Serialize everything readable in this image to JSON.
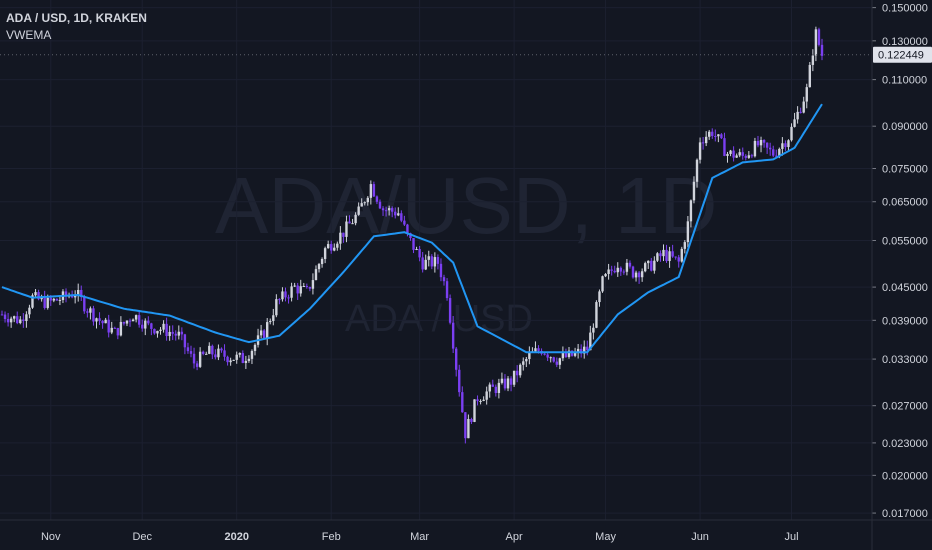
{
  "header": {
    "symbol_title": "ADA / USD, 1D, KRAKEN",
    "indicator": "VWEMA"
  },
  "watermark": {
    "main": "ADA/USD, 1D",
    "sub": "ADA / USD"
  },
  "last_price": "0.122449",
  "colors": {
    "background": "#131722",
    "grid": "#1c2030",
    "axis_text": "#d1d4dc",
    "up_candle": "#d1d4dc",
    "down_candle": "#7b3ff2",
    "vwema_line": "#2196f3",
    "price_tag_bg": "#e0e3eb",
    "price_tag_text": "#131722"
  },
  "chart_data": {
    "type": "candlestick",
    "title": "ADA / USD, 1D, KRAKEN",
    "y_scale": "log",
    "ylim": [
      0.0165,
      0.155
    ],
    "price_axis_labels": [
      "0.150000",
      "0.130000",
      "0.110000",
      "0.090000",
      "0.075000",
      "0.065000",
      "0.055000",
      "0.045000",
      "0.039000",
      "0.033000",
      "0.027000",
      "0.023000",
      "0.020000",
      "0.017000"
    ],
    "time_axis_labels": [
      "Nov",
      "Dec",
      "2020",
      "Feb",
      "Mar",
      "Apr",
      "May",
      "Jun",
      "Jul"
    ],
    "time_axis_bold": [
      "2020"
    ],
    "x_start": "2019-10-16",
    "x_end": "2020-07-11",
    "price_anchors": [
      [
        "2019-10-16",
        0.04
      ],
      [
        "2019-10-22",
        0.039
      ],
      [
        "2019-10-26",
        0.043
      ],
      [
        "2019-10-31",
        0.042
      ],
      [
        "2019-11-05",
        0.043
      ],
      [
        "2019-11-09",
        0.044
      ],
      [
        "2019-11-13",
        0.041
      ],
      [
        "2019-11-17",
        0.039
      ],
      [
        "2019-11-22",
        0.037
      ],
      [
        "2019-11-28",
        0.04
      ],
      [
        "2019-12-03",
        0.038
      ],
      [
        "2019-12-08",
        0.0375
      ],
      [
        "2019-12-13",
        0.0365
      ],
      [
        "2019-12-18",
        0.0325
      ],
      [
        "2019-12-23",
        0.034
      ],
      [
        "2019-12-30",
        0.0333
      ],
      [
        "2020-01-03",
        0.033
      ],
      [
        "2020-01-06",
        0.0345
      ],
      [
        "2020-01-10",
        0.037
      ],
      [
        "2020-01-14",
        0.042
      ],
      [
        "2020-01-20",
        0.045
      ],
      [
        "2020-01-24",
        0.044
      ],
      [
        "2020-01-30",
        0.053
      ],
      [
        "2020-02-05",
        0.057
      ],
      [
        "2020-02-10",
        0.062
      ],
      [
        "2020-02-14",
        0.07
      ],
      [
        "2020-02-18",
        0.063
      ],
      [
        "2020-02-23",
        0.062
      ],
      [
        "2020-02-26",
        0.056
      ],
      [
        "2020-03-02",
        0.05
      ],
      [
        "2020-03-07",
        0.05
      ],
      [
        "2020-03-10",
        0.044
      ],
      [
        "2020-03-13",
        0.032
      ],
      [
        "2020-03-16",
        0.024
      ],
      [
        "2020-03-20",
        0.028
      ],
      [
        "2020-03-25",
        0.029
      ],
      [
        "2020-03-31",
        0.03
      ],
      [
        "2020-04-06",
        0.0335
      ],
      [
        "2020-04-10",
        0.0345
      ],
      [
        "2020-04-15",
        0.033
      ],
      [
        "2020-04-20",
        0.0335
      ],
      [
        "2020-04-25",
        0.0345
      ],
      [
        "2020-04-30",
        0.046
      ],
      [
        "2020-05-05",
        0.05
      ],
      [
        "2020-05-10",
        0.048
      ],
      [
        "2020-05-15",
        0.049
      ],
      [
        "2020-05-20",
        0.052
      ],
      [
        "2020-05-25",
        0.05
      ],
      [
        "2020-05-28",
        0.059
      ],
      [
        "2020-06-01",
        0.085
      ],
      [
        "2020-06-05",
        0.088
      ],
      [
        "2020-06-10",
        0.08
      ],
      [
        "2020-06-15",
        0.079
      ],
      [
        "2020-06-20",
        0.083
      ],
      [
        "2020-06-25",
        0.08
      ],
      [
        "2020-06-30",
        0.086
      ],
      [
        "2020-07-03",
        0.095
      ],
      [
        "2020-07-06",
        0.105
      ],
      [
        "2020-07-08",
        0.125
      ],
      [
        "2020-07-09",
        0.134
      ],
      [
        "2020-07-11",
        0.1224
      ]
    ],
    "vwema_anchors": [
      [
        "2019-10-16",
        0.045
      ],
      [
        "2019-10-26",
        0.043
      ],
      [
        "2019-11-10",
        0.0435
      ],
      [
        "2019-11-25",
        0.041
      ],
      [
        "2019-12-10",
        0.0398
      ],
      [
        "2019-12-25",
        0.037
      ],
      [
        "2020-01-05",
        0.0355
      ],
      [
        "2020-01-15",
        0.0365
      ],
      [
        "2020-01-25",
        0.041
      ],
      [
        "2020-02-05",
        0.048
      ],
      [
        "2020-02-15",
        0.056
      ],
      [
        "2020-02-25",
        0.057
      ],
      [
        "2020-03-05",
        0.0545
      ],
      [
        "2020-03-12",
        0.05
      ],
      [
        "2020-03-20",
        0.038
      ],
      [
        "2020-04-05",
        0.034
      ],
      [
        "2020-04-25",
        0.034
      ],
      [
        "2020-05-05",
        0.04
      ],
      [
        "2020-05-15",
        0.044
      ],
      [
        "2020-05-25",
        0.047
      ],
      [
        "2020-06-05",
        0.072
      ],
      [
        "2020-06-15",
        0.077
      ],
      [
        "2020-06-25",
        0.078
      ],
      [
        "2020-07-02",
        0.082
      ],
      [
        "2020-07-11",
        0.099
      ]
    ],
    "series": [
      {
        "name": "ADA / USD, 1D, KRAKEN",
        "kind": "candles"
      },
      {
        "name": "VWEMA",
        "kind": "line"
      }
    ],
    "grid": true
  }
}
